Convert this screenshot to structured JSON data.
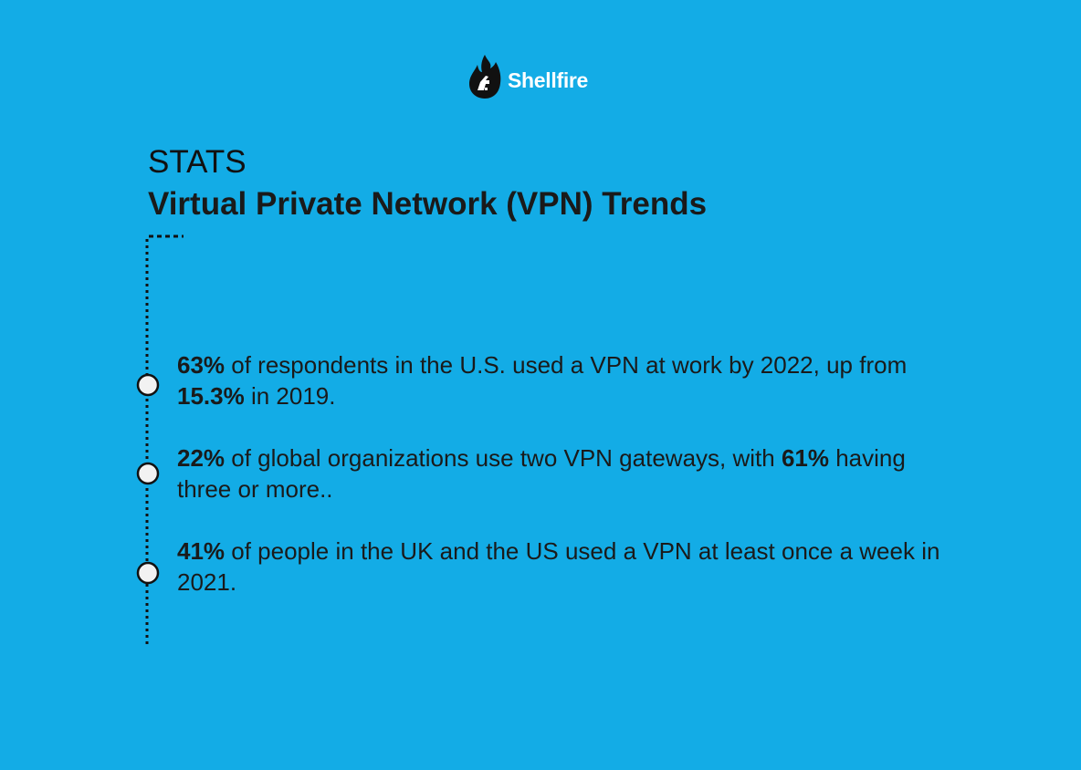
{
  "brand": {
    "name": "Shellfire",
    "color": "#ffffff",
    "icon": "flame-logo-icon"
  },
  "background_color": "#13ACE6",
  "header": {
    "kicker": "STATS",
    "title": "Virtual Private Network (VPN) Trends"
  },
  "stats": [
    {
      "b1": "63%",
      "t1": " of respondents in the U.S. used a VPN at work by 2022, up from ",
      "b2": "15.3%",
      "t2": " in 2019."
    },
    {
      "b1": "22%",
      "t1": " of global organizations use two VPN gateways, with ",
      "b2": "61%",
      "t2": " having three or more.."
    },
    {
      "b1": "41%",
      "t1": " of people in the UK and the US used a VPN at least once a week in 2021.",
      "b2": "",
      "t2": ""
    }
  ]
}
